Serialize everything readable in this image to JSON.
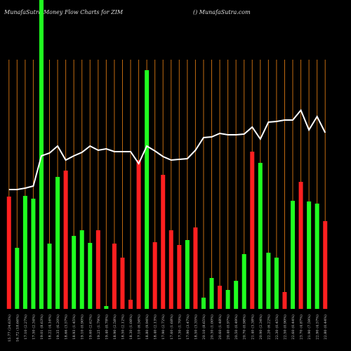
{
  "chart_data": {
    "type": "bar",
    "title": "MunafaSutra  Money Flow  Charts for ZIM",
    "subtitle": "() MunafaSutra.com",
    "categories": [
      "15.77 (24.63%)",
      "16.72 (18.66%)",
      "17.10 (2.27%)",
      "17.50 (2.34%)",
      "19.01 (8.63%)",
      "18.22 (4.16%)",
      "19.35 (6.20%)",
      "18.66 (3.57%)",
      "18.93 (1.45%)",
      "19.10 (0.90%)",
      "19.60 (2.62%)",
      "19.25 (1.79%)",
      "19.40 (0.78%)",
      "18.90 (2.58%)",
      "18.50 (2.12%)",
      "18.30 (1.08%)",
      "17.10 (6.56%)",
      "18.80 (9.94%)",
      "18.40 (2.13%)",
      "17.90 (2.72%)",
      "17.60 (1.68%)",
      "17.30 (1.70%)",
      "17.90 (3.47%)",
      "18.50 (3.35%)",
      "20.10 (8.65%)",
      "20.30 (1.00%)",
      "20.60 (1.48%)",
      "20.40 (0.97%)",
      "20.50 (0.49%)",
      "20.70 (0.98%)",
      "21.40 (3.38%)",
      "20.90 (2.34%)",
      "22.20 (6.22%)",
      "22.30 (0.45%)",
      "22.50 (0.90%)",
      "22.60 (0.44%)",
      "23.70 (4.87%)",
      "21.90 (7.59%)",
      "22.90 (4.57%)",
      "22.80 (0.44%)"
    ],
    "values": [
      160,
      87,
      161,
      157,
      440,
      93,
      188,
      197,
      104,
      112,
      94,
      112,
      4,
      93,
      73,
      13,
      212,
      340,
      95,
      191,
      112,
      91,
      98,
      116,
      16,
      44,
      33,
      27,
      40,
      78,
      224,
      208,
      80,
      73,
      24,
      154,
      181,
      153,
      150,
      125
    ],
    "colors": [
      "#ff2020",
      "#20ff20",
      "#20ff20",
      "#20ff20",
      "#20ff20",
      "#20ff20",
      "#20ff20",
      "#ff2020",
      "#20ff20",
      "#20ff20",
      "#20ff20",
      "#ff2020",
      "#20ff20",
      "#ff2020",
      "#ff2020",
      "#ff2020",
      "#ff2020",
      "#20ff20",
      "#ff2020",
      "#ff2020",
      "#ff2020",
      "#ff2020",
      "#20ff20",
      "#ff2020",
      "#20ff20",
      "#20ff20",
      "#ff2020",
      "#20ff20",
      "#20ff20",
      "#20ff20",
      "#ff2020",
      "#20ff20",
      "#20ff20",
      "#20ff20",
      "#ff2020",
      "#20ff20",
      "#ff2020",
      "#20ff20",
      "#20ff20",
      "#ff2020"
    ],
    "line_values": [
      170,
      170,
      172,
      175,
      218,
      222,
      232,
      212,
      218,
      223,
      232,
      226,
      228,
      224,
      224,
      224,
      207,
      232,
      225,
      217,
      212,
      213,
      214,
      226,
      244,
      245,
      250,
      248,
      248,
      249,
      259,
      242,
      266,
      267,
      269,
      269,
      283,
      255,
      274,
      251
    ],
    "line_color": "#ffffff",
    "ylim": [
      0,
      440
    ]
  }
}
